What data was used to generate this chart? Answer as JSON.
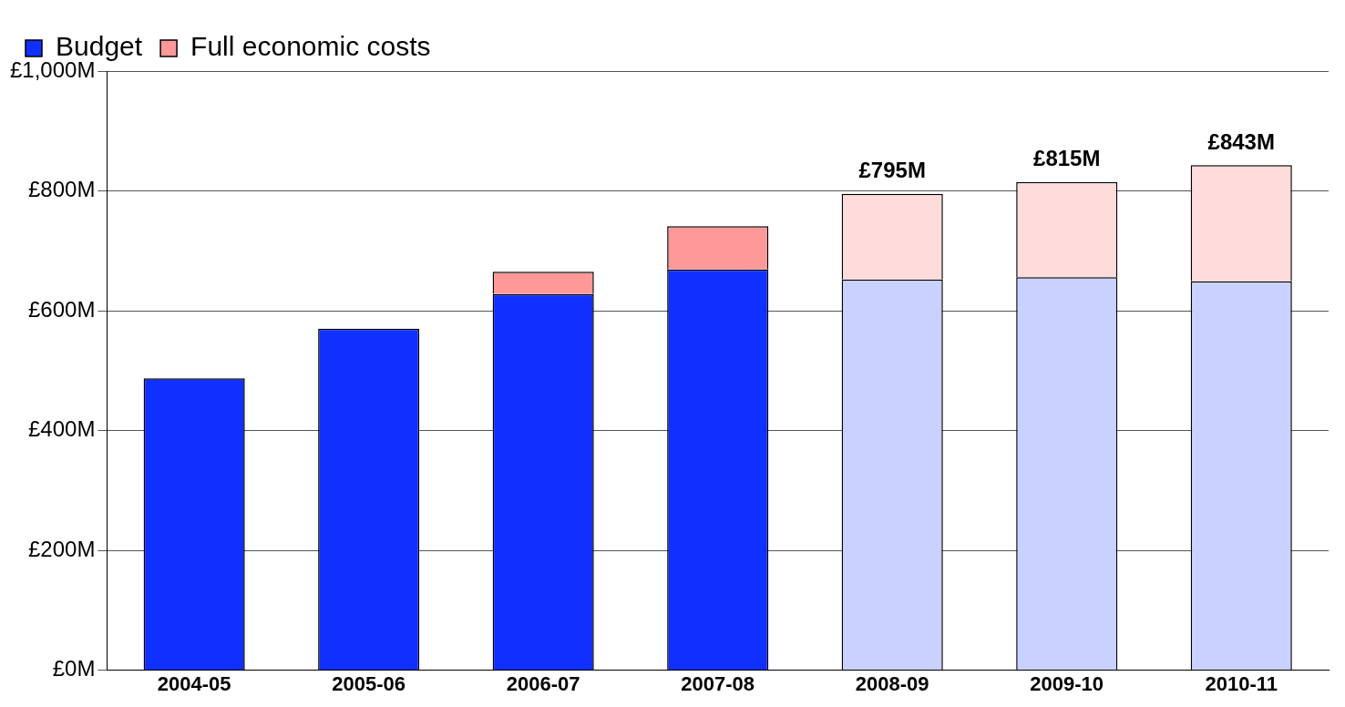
{
  "chart_data": {
    "type": "bar",
    "stacked": true,
    "categories": [
      "2004-05",
      "2005-06",
      "2006-07",
      "2007-08",
      "2008-09",
      "2009-10",
      "2010-11"
    ],
    "series": [
      {
        "name": "Budget",
        "colors": [
          "#1030ff",
          "#1030ff",
          "#1030ff",
          "#1030ff",
          "#c9d1ff",
          "#c9d1ff",
          "#c9d1ff"
        ],
        "values": [
          487,
          570,
          628,
          669,
          652,
          656,
          649
        ]
      },
      {
        "name": "Full economic costs",
        "colors": [
          "#ff9999",
          "#ff9999",
          "#ff9999",
          "#ff9999",
          "#ffdcdc",
          "#ffdcdc",
          "#ffdcdc"
        ],
        "values": [
          null,
          null,
          37,
          72,
          143,
          159,
          194
        ]
      }
    ],
    "totals": [
      null,
      null,
      null,
      null,
      "£795M",
      "£815M",
      "£843M"
    ],
    "ylim": [
      0,
      1000
    ],
    "yticks": [
      {
        "value": 0,
        "label": "£0M"
      },
      {
        "value": 200,
        "label": "£200M"
      },
      {
        "value": 400,
        "label": "£400M"
      },
      {
        "value": 600,
        "label": "£600M"
      },
      {
        "value": 800,
        "label": "£800M"
      },
      {
        "value": 1000,
        "label": "£1,000M"
      }
    ],
    "grid": "y",
    "legend": "top left"
  }
}
